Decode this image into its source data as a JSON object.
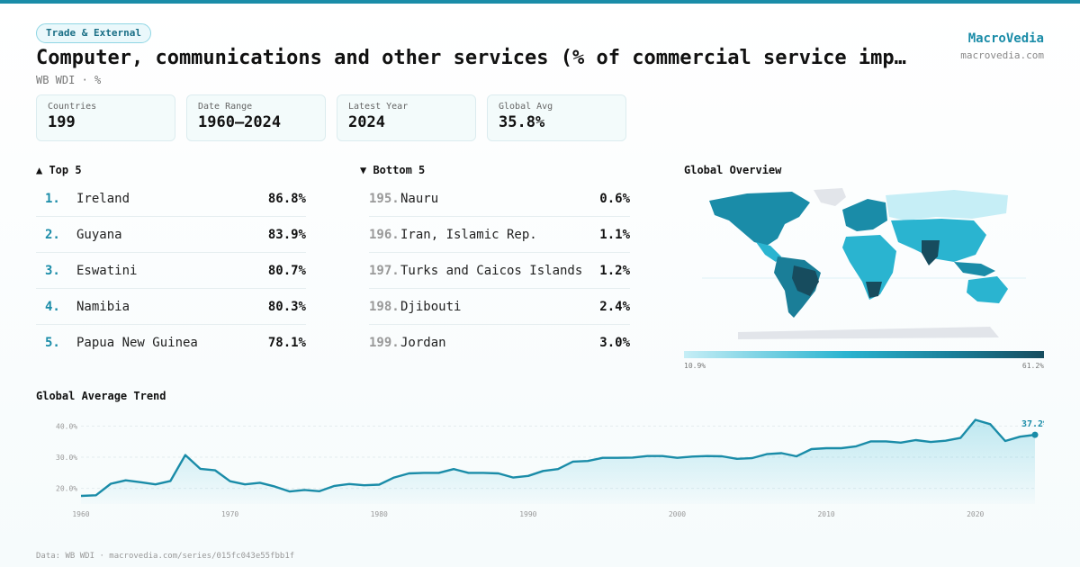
{
  "header": {
    "tag": "Trade & External",
    "title": "Computer, communications and other services (% of commercial service imp…",
    "subtitle": "WB WDI · %",
    "brand": "MacroVedia",
    "brand_url": "macrovedia.com"
  },
  "stats": [
    {
      "label": "Countries",
      "value": "199"
    },
    {
      "label": "Date Range",
      "value": "1960–2024"
    },
    {
      "label": "Latest Year",
      "value": "2024"
    },
    {
      "label": "Global Avg",
      "value": "35.8%"
    }
  ],
  "top5": {
    "heading": "▲ Top 5",
    "items": [
      {
        "rank": "1.",
        "name": "Ireland",
        "value": "86.8%"
      },
      {
        "rank": "2.",
        "name": "Guyana",
        "value": "83.9%"
      },
      {
        "rank": "3.",
        "name": "Eswatini",
        "value": "80.7%"
      },
      {
        "rank": "4.",
        "name": "Namibia",
        "value": "80.3%"
      },
      {
        "rank": "5.",
        "name": "Papua New Guinea",
        "value": "78.1%"
      }
    ]
  },
  "bottom5": {
    "heading": "▼ Bottom 5",
    "items": [
      {
        "rank": "195.",
        "name": "Nauru",
        "value": "0.6%"
      },
      {
        "rank": "196.",
        "name": "Iran, Islamic Rep.",
        "value": "1.1%"
      },
      {
        "rank": "197.",
        "name": "Turks and Caicos Islands",
        "value": "1.2%"
      },
      {
        "rank": "198.",
        "name": "Djibouti",
        "value": "2.4%"
      },
      {
        "rank": "199.",
        "name": "Jordan",
        "value": "3.0%"
      }
    ]
  },
  "map": {
    "heading": "Global Overview",
    "legend_min": "10.9%",
    "legend_max": "61.2%"
  },
  "colors": {
    "accent": "#1a8ca8",
    "line": "#1a8ca8",
    "map_light": "#c6eef6",
    "map_mid": "#2ab4d0",
    "map_dark": "#174c5e",
    "antarctica": "#e2e5ea"
  },
  "chart_data": {
    "type": "area",
    "title": "Global Average Trend",
    "x": [
      1960,
      1961,
      1962,
      1963,
      1964,
      1965,
      1966,
      1967,
      1968,
      1969,
      1970,
      1971,
      1972,
      1973,
      1974,
      1975,
      1976,
      1977,
      1978,
      1979,
      1980,
      1981,
      1982,
      1983,
      1984,
      1985,
      1986,
      1987,
      1988,
      1989,
      1990,
      1991,
      1992,
      1993,
      1994,
      1995,
      1996,
      1997,
      1998,
      1999,
      2000,
      2001,
      2002,
      2003,
      2004,
      2005,
      2006,
      2007,
      2008,
      2009,
      2010,
      2011,
      2012,
      2013,
      2014,
      2015,
      2016,
      2017,
      2018,
      2019,
      2020,
      2021,
      2022,
      2023,
      2024
    ],
    "series": [
      {
        "values": [
          17.6,
          17.8,
          21.5,
          22.6,
          22.0,
          21.3,
          22.4,
          30.7,
          26.3,
          25.8,
          22.3,
          21.3,
          21.8,
          20.6,
          19.0,
          19.5,
          19.1,
          20.8,
          21.4,
          21.0,
          21.2,
          23.5,
          24.8,
          25.0,
          25.0,
          26.2,
          25.0,
          25.0,
          24.8,
          23.5,
          24.0,
          25.6,
          26.2,
          28.6,
          28.8,
          29.8,
          29.8,
          29.9,
          30.4,
          30.4,
          29.8,
          30.2,
          30.4,
          30.3,
          29.5,
          29.7,
          31.0,
          31.3,
          30.3,
          32.6,
          32.9,
          32.9,
          33.5,
          35.1,
          35.1,
          34.7,
          35.5,
          34.9,
          35.3,
          36.2,
          42.0,
          40.6,
          35.2,
          36.6,
          37.2
        ]
      }
    ],
    "end_label": "37.2%",
    "ylim": [
      15,
      43
    ],
    "yticks": [
      20,
      30,
      40
    ],
    "ytick_labels": [
      "20.0%",
      "30.0%",
      "40.0%"
    ],
    "xticks": [
      1960,
      1970,
      1980,
      1990,
      2000,
      2010,
      2020
    ],
    "xtick_labels": [
      "1960",
      "1970",
      "1980",
      "1990",
      "2000",
      "2010",
      "2020"
    ],
    "grid": true
  },
  "footer": {
    "source": "Data: WB WDI · macrovedia.com/series/015fc043e55fbb1f"
  }
}
